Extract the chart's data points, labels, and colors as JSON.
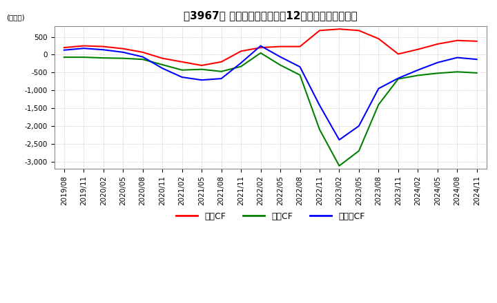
{
  "title": "【3967】 キャッシュフローの12か月移動合計の推移",
  "ylabel": "(百万円)",
  "ylim": [
    -3200,
    800
  ],
  "yticks": [
    500,
    0,
    -500,
    -1000,
    -1500,
    -2000,
    -2500,
    -3000
  ],
  "legend_labels": [
    "営業CF",
    "投資CF",
    "フリーCF"
  ],
  "line_colors": [
    "#ff0000",
    "#008000",
    "#0000ff"
  ],
  "x_labels": [
    "2019/08",
    "2019/11",
    "2020/02",
    "2020/05",
    "2020/08",
    "2020/11",
    "2021/02",
    "2021/05",
    "2021/08",
    "2021/11",
    "2022/02",
    "2022/05",
    "2022/08",
    "2022/11",
    "2023/02",
    "2023/05",
    "2023/08",
    "2023/11",
    "2024/02",
    "2024/05",
    "2024/08",
    "2024/11"
  ],
  "operating_cf": [
    200,
    250,
    230,
    170,
    70,
    -100,
    -200,
    -300,
    -200,
    100,
    200,
    230,
    230,
    680,
    720,
    680,
    450,
    20,
    150,
    300,
    400,
    380
  ],
  "investing_cf": [
    -70,
    -70,
    -90,
    -100,
    -130,
    -280,
    -430,
    -410,
    -470,
    -330,
    50,
    -290,
    -570,
    -2100,
    -3120,
    -2700,
    -1400,
    -680,
    -580,
    -520,
    -480,
    -510
  ],
  "free_cf": [
    130,
    180,
    140,
    70,
    -60,
    -380,
    -630,
    -710,
    -670,
    -230,
    250,
    -60,
    -340,
    -1420,
    -2390,
    -2000,
    -950,
    -660,
    -430,
    -220,
    -80,
    -130
  ],
  "background_color": "#ffffff",
  "grid_color": "#aaaaaa",
  "title_fontsize": 11,
  "axis_fontsize": 7.5,
  "legend_fontsize": 9
}
